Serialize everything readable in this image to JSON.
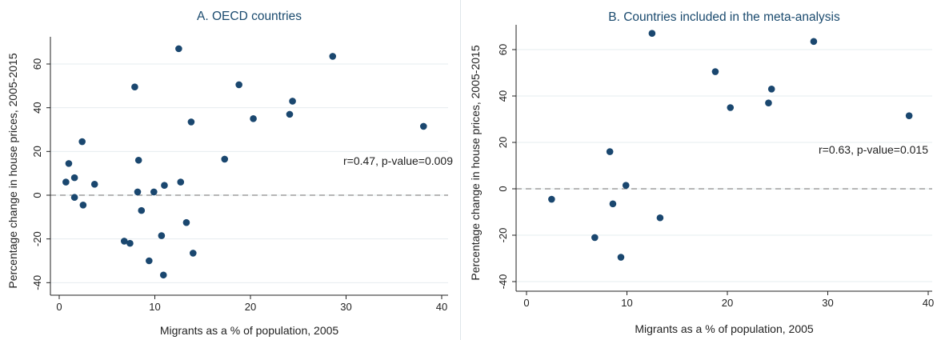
{
  "chart_data": [
    {
      "type": "scatter",
      "title": "A. OECD countries",
      "xlabel": "Migrants as a % of population, 2005",
      "ylabel": "Percentage change in house prices, 2005-2015",
      "xlim": [
        0,
        40
      ],
      "ylim": [
        -40,
        70
      ],
      "xticks": [
        0,
        10,
        20,
        30,
        40
      ],
      "yticks": [
        -40,
        -20,
        0,
        20,
        40,
        60
      ],
      "grid": true,
      "reference_line_y": 0,
      "annotation": "r=0.47, p-value=0.009",
      "marker_color": "#1a476f",
      "points": [
        {
          "x": 0.7,
          "y": 6
        },
        {
          "x": 1.0,
          "y": 14.5
        },
        {
          "x": 1.6,
          "y": 8
        },
        {
          "x": 1.6,
          "y": -1
        },
        {
          "x": 2.4,
          "y": 24.5
        },
        {
          "x": 2.5,
          "y": -4.5
        },
        {
          "x": 3.7,
          "y": 5
        },
        {
          "x": 6.8,
          "y": -21
        },
        {
          "x": 7.4,
          "y": -22
        },
        {
          "x": 7.9,
          "y": 49.5
        },
        {
          "x": 8.2,
          "y": 1.5
        },
        {
          "x": 8.3,
          "y": 16
        },
        {
          "x": 8.6,
          "y": -7
        },
        {
          "x": 9.4,
          "y": -30
        },
        {
          "x": 9.9,
          "y": 1.5
        },
        {
          "x": 10.7,
          "y": -18.5
        },
        {
          "x": 10.9,
          "y": -36.5
        },
        {
          "x": 11.0,
          "y": 4.5
        },
        {
          "x": 12.5,
          "y": 67
        },
        {
          "x": 12.7,
          "y": 6
        },
        {
          "x": 13.3,
          "y": -12.5
        },
        {
          "x": 13.8,
          "y": 33.5
        },
        {
          "x": 14.0,
          "y": -26.5
        },
        {
          "x": 17.3,
          "y": 16.5
        },
        {
          "x": 18.8,
          "y": 50.5
        },
        {
          "x": 20.3,
          "y": 35
        },
        {
          "x": 24.1,
          "y": 37
        },
        {
          "x": 24.4,
          "y": 43
        },
        {
          "x": 28.6,
          "y": 63.5
        },
        {
          "x": 38.1,
          "y": 31.5
        }
      ]
    },
    {
      "type": "scatter",
      "title": "B. Countries included in the meta-analysis",
      "xlabel": "Migrants as a % of population, 2005",
      "ylabel": "Percentage change in house prices, 2005-2015",
      "xlim": [
        0,
        40
      ],
      "ylim": [
        -40,
        70
      ],
      "xticks": [
        0,
        10,
        20,
        30,
        40
      ],
      "yticks": [
        -40,
        -20,
        0,
        20,
        40,
        60
      ],
      "grid": true,
      "reference_line_y": 0,
      "annotation": "r=0.63, p-value=0.015",
      "marker_color": "#1a476f",
      "points": [
        {
          "x": 2.5,
          "y": -4.5
        },
        {
          "x": 6.8,
          "y": -21
        },
        {
          "x": 8.3,
          "y": 16
        },
        {
          "x": 8.6,
          "y": -6.5
        },
        {
          "x": 9.4,
          "y": -29.5
        },
        {
          "x": 9.9,
          "y": 1.5
        },
        {
          "x": 12.5,
          "y": 67
        },
        {
          "x": 13.3,
          "y": -12.5
        },
        {
          "x": 18.8,
          "y": 50.5
        },
        {
          "x": 20.3,
          "y": 35
        },
        {
          "x": 24.1,
          "y": 37
        },
        {
          "x": 24.4,
          "y": 43
        },
        {
          "x": 28.6,
          "y": 63.5
        },
        {
          "x": 38.1,
          "y": 31.5
        }
      ]
    }
  ]
}
